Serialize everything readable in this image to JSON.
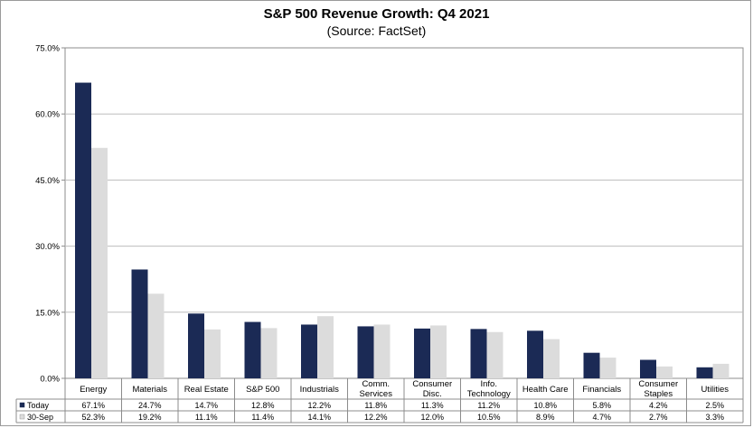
{
  "chart_data": {
    "type": "bar",
    "title": "S&P 500 Revenue Growth: Q4 2021",
    "subtitle": "(Source: FactSet)",
    "categories": [
      [
        "Energy"
      ],
      [
        "Materials"
      ],
      [
        "Real Estate"
      ],
      [
        "S&P 500"
      ],
      [
        "Industrials"
      ],
      [
        "Comm.",
        "Services"
      ],
      [
        "Consumer",
        "Disc."
      ],
      [
        "Info.",
        "Technology"
      ],
      [
        "Health Care"
      ],
      [
        "Financials"
      ],
      [
        "Consumer",
        "Staples"
      ],
      [
        "Utilities"
      ]
    ],
    "series": [
      {
        "name": "Today",
        "color": "#1b2a55",
        "values": [
          67.1,
          24.7,
          14.7,
          12.8,
          12.2,
          11.8,
          11.3,
          11.2,
          10.8,
          5.8,
          4.2,
          2.5
        ],
        "labels": [
          "67.1%",
          "24.7%",
          "14.7%",
          "12.8%",
          "12.2%",
          "11.8%",
          "11.3%",
          "11.2%",
          "10.8%",
          "5.8%",
          "4.2%",
          "2.5%"
        ]
      },
      {
        "name": "30-Sep",
        "color": "#dcdcdc",
        "values": [
          52.3,
          19.2,
          11.1,
          11.4,
          14.1,
          12.2,
          12.0,
          10.5,
          8.9,
          4.7,
          2.7,
          3.3
        ],
        "labels": [
          "52.3%",
          "19.2%",
          "11.1%",
          "11.4%",
          "14.1%",
          "12.2%",
          "12.0%",
          "10.5%",
          "8.9%",
          "4.7%",
          "2.7%",
          "3.3%"
        ]
      }
    ],
    "yticks": [
      {
        "value": 0,
        "label": "0.0%"
      },
      {
        "value": 15,
        "label": "15.0%"
      },
      {
        "value": 30,
        "label": "30.0%"
      },
      {
        "value": 45,
        "label": "45.0%"
      },
      {
        "value": 60,
        "label": "60.0%"
      },
      {
        "value": 75,
        "label": "75.0%"
      }
    ],
    "ylim": [
      0,
      75
    ],
    "grid": true,
    "legend": "data-table"
  }
}
